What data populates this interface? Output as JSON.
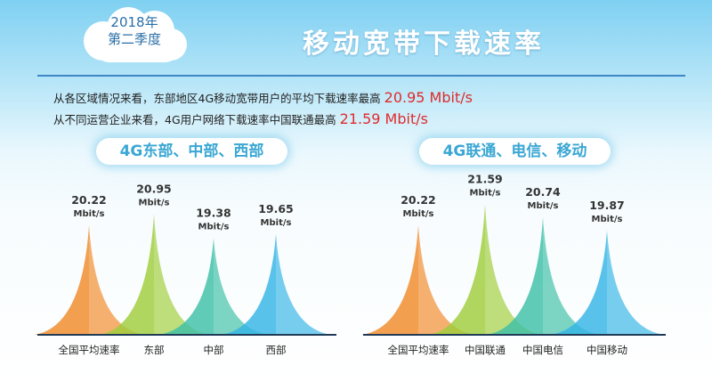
{
  "badge": {
    "line1": "2018年",
    "line2": "第二季度"
  },
  "title": "移动宽带下载速率",
  "info": {
    "line1_text": "从各区域情况来看，东部地区4G移动宽带用户的平均下载速率最高",
    "line1_value": "20.95 Mbit/s",
    "line2_text": "从不同运营企业来看，4G用户网络下载速率中国联通最高",
    "line2_value": "21.59 Mbit/s"
  },
  "colors": {
    "orange": "#f08a2a",
    "green": "#9fcd3c",
    "teal": "#3dbfa6",
    "blue": "#35b4e6",
    "accent_red": "#e02b2b"
  },
  "chart_data": [
    {
      "type": "area",
      "title": "4G东部、中部、西部",
      "unit": "Mbit/s",
      "categories": [
        "全国平均速率",
        "东部",
        "中部",
        "西部"
      ],
      "values": [
        20.22,
        20.95,
        19.38,
        19.65
      ],
      "colors": [
        "#f08a2a",
        "#9fcd3c",
        "#3dbfa6",
        "#35b4e6"
      ]
    },
    {
      "type": "area",
      "title": "4G联通、电信、移动",
      "unit": "Mbit/s",
      "categories": [
        "全国平均速率",
        "中国联通",
        "中国电信",
        "中国移动"
      ],
      "values": [
        20.22,
        21.59,
        20.74,
        19.87
      ],
      "colors": [
        "#f08a2a",
        "#9fcd3c",
        "#3dbfa6",
        "#35b4e6"
      ]
    }
  ]
}
